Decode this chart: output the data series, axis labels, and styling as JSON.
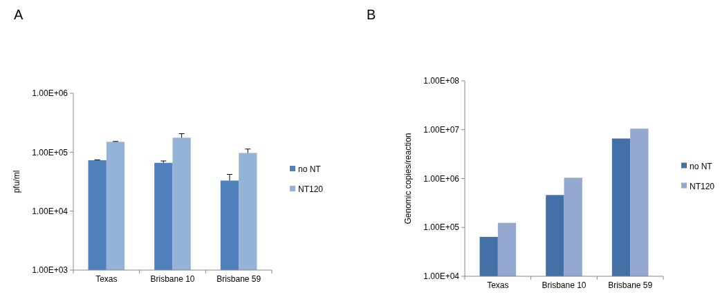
{
  "chart_data": [
    {
      "type": "bar",
      "title": "A",
      "ylabel": "pfu/ml",
      "categories": [
        "Texas",
        "Brisbane 10",
        "Brisbane 59"
      ],
      "log": true,
      "ylim": [
        1000,
        1000000
      ],
      "yticks": [
        {
          "value": 1000,
          "label": "1.00E+03"
        },
        {
          "value": 10000,
          "label": "1.00E+04"
        },
        {
          "value": 100000,
          "label": "1.00E+05"
        },
        {
          "value": 1000000,
          "label": "1.00E+06"
        }
      ],
      "grid": false,
      "legend": "right",
      "series": [
        {
          "name": "no NT",
          "color": "#4f81bd",
          "values": [
            73000,
            66000,
            33000
          ],
          "errors": [
            [
              73000,
              74000
            ],
            [
              66000,
              71000
            ],
            [
              33000,
              42000
            ]
          ]
        },
        {
          "name": "NT120",
          "color": "#95b3d7",
          "values": [
            150000,
            176000,
            97000
          ],
          "errors": [
            [
              150000,
              152000
            ],
            [
              176000,
              206000
            ],
            [
              97000,
              113000
            ]
          ]
        }
      ]
    },
    {
      "type": "bar",
      "title": "B",
      "ylabel": "Genomic copies/reaction",
      "categories": [
        "Texas",
        "Brisbane 10",
        "Brisbane 59"
      ],
      "log": true,
      "ylim": [
        10000,
        100000000
      ],
      "yticks": [
        {
          "value": 10000,
          "label": "1.00E+04"
        },
        {
          "value": 100000,
          "label": "1.00E+05"
        },
        {
          "value": 1000000,
          "label": "1.00E+06"
        },
        {
          "value": 10000000,
          "label": "1.00E+07"
        },
        {
          "value": 100000000,
          "label": "1.00E+08"
        }
      ],
      "grid": false,
      "legend": "right",
      "series": [
        {
          "name": "no NT",
          "color": "#4470a8",
          "values": [
            64000,
            460000,
            6600000
          ]
        },
        {
          "name": "NT120",
          "color": "#94a8d0",
          "values": [
            124000,
            1040000,
            10500000
          ]
        }
      ]
    }
  ]
}
